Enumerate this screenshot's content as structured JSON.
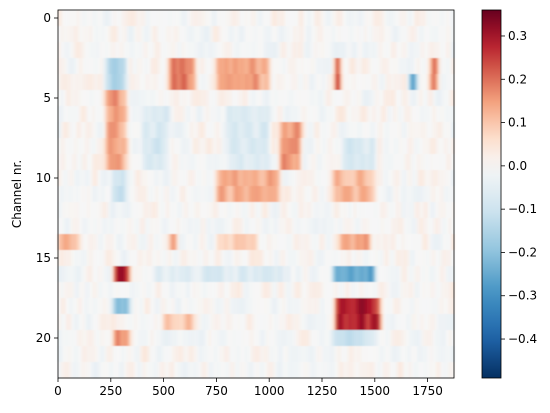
{
  "chart_data": {
    "type": "heatmap",
    "title": "",
    "xlabel": "",
    "ylabel": "Channel nr.",
    "colormap": "RdBu_r",
    "x_range": [
      0,
      1875
    ],
    "y_range": [
      -0.5,
      22.5
    ],
    "y_inverted": true,
    "n_channels": 23,
    "x_ticks": [
      0,
      250,
      500,
      750,
      1000,
      1250,
      1500,
      1750
    ],
    "y_ticks": [
      0,
      5,
      10,
      15,
      20
    ],
    "colorbar": {
      "range": [
        -0.49,
        0.36
      ],
      "ticks": [
        -0.4,
        -0.3,
        -0.2,
        -0.1,
        0.0,
        0.1,
        0.2,
        0.3
      ],
      "tick_labels": [
        "−0.4",
        "−0.3",
        "−0.2",
        "−0.1",
        "0.0",
        "0.1",
        "0.2",
        "0.3"
      ]
    },
    "grid": false,
    "regions": [
      {
        "ch": [
          3,
          4
        ],
        "x": [
          220,
          330
        ],
        "value": -0.15
      },
      {
        "ch": [
          3,
          4
        ],
        "x": [
          520,
          650
        ],
        "value": 0.2
      },
      {
        "ch": [
          3,
          4
        ],
        "x": [
          750,
          1000
        ],
        "value": 0.15
      },
      {
        "ch": [
          3,
          4
        ],
        "x": [
          1310,
          1340
        ],
        "value": 0.25
      },
      {
        "ch": [
          4,
          4
        ],
        "x": [
          1660,
          1700
        ],
        "value": -0.3
      },
      {
        "ch": [
          3,
          4
        ],
        "x": [
          1760,
          1800
        ],
        "value": 0.22
      },
      {
        "ch": [
          5,
          9
        ],
        "x": [
          230,
          330
        ],
        "value": 0.15
      },
      {
        "ch": [
          6,
          9
        ],
        "x": [
          400,
          520
        ],
        "value": -0.08
      },
      {
        "ch": [
          6,
          9
        ],
        "x": [
          800,
          1000
        ],
        "value": -0.07
      },
      {
        "ch": [
          7,
          9
        ],
        "x": [
          1050,
          1150
        ],
        "value": 0.17
      },
      {
        "ch": [
          8,
          9
        ],
        "x": [
          1350,
          1500
        ],
        "value": -0.08
      },
      {
        "ch": [
          10,
          11
        ],
        "x": [
          250,
          330
        ],
        "value": -0.1
      },
      {
        "ch": [
          10,
          11
        ],
        "x": [
          750,
          1050
        ],
        "value": 0.14
      },
      {
        "ch": [
          10,
          11
        ],
        "x": [
          1300,
          1500
        ],
        "value": 0.12
      },
      {
        "ch": [
          14,
          14
        ],
        "x": [
          0,
          100
        ],
        "value": 0.12
      },
      {
        "ch": [
          14,
          14
        ],
        "x": [
          520,
          560
        ],
        "value": 0.13
      },
      {
        "ch": [
          14,
          14
        ],
        "x": [
          750,
          950
        ],
        "value": 0.1
      },
      {
        "ch": [
          14,
          14
        ],
        "x": [
          1340,
          1480
        ],
        "value": 0.15
      },
      {
        "ch": [
          16,
          16
        ],
        "x": [
          260,
          340
        ],
        "value": 0.3
      },
      {
        "ch": [
          16,
          16
        ],
        "x": [
          1300,
          1500
        ],
        "value": -0.28
      },
      {
        "ch": [
          16,
          16
        ],
        "x": [
          450,
          1100
        ],
        "value": -0.06
      },
      {
        "ch": [
          18,
          18
        ],
        "x": [
          260,
          340
        ],
        "value": -0.22
      },
      {
        "ch": [
          18,
          19
        ],
        "x": [
          1310,
          1520
        ],
        "value": 0.28
      },
      {
        "ch": [
          19,
          19
        ],
        "x": [
          500,
          650
        ],
        "value": 0.1
      },
      {
        "ch": [
          20,
          20
        ],
        "x": [
          260,
          340
        ],
        "value": 0.2
      },
      {
        "ch": [
          20,
          20
        ],
        "x": [
          1300,
          1500
        ],
        "value": -0.1
      }
    ]
  }
}
